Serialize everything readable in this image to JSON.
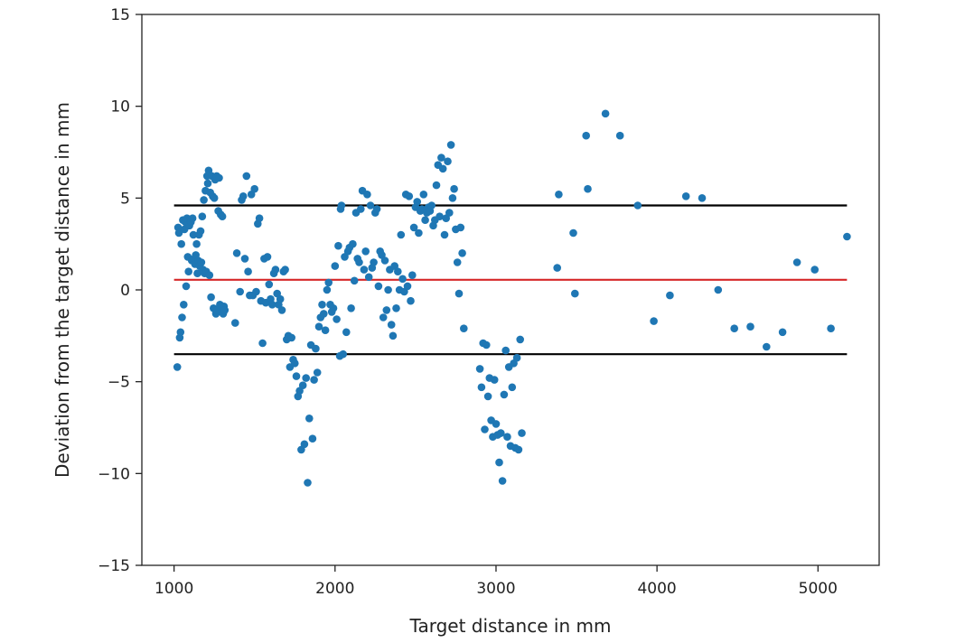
{
  "chart_data": {
    "type": "scatter",
    "title": "",
    "xlabel": "Target distance in mm",
    "ylabel": "Deviation from the target distance in mm",
    "xlim": [
      800,
      5380
    ],
    "ylim": [
      -15,
      15
    ],
    "xticks": [
      1000,
      2000,
      3000,
      4000,
      5000
    ],
    "yticks": [
      -15,
      -10,
      -5,
      0,
      5,
      10,
      15
    ],
    "xtick_labels": [
      "1000",
      "2000",
      "3000",
      "4000",
      "5000"
    ],
    "ytick_labels": [
      "−15",
      "−10",
      "−5",
      "0",
      "5",
      "10",
      "15"
    ],
    "grid": false,
    "point_color": "#1f77b4",
    "reference_lines": [
      {
        "role": "upper limit",
        "y": 4.6,
        "x_range": [
          1000,
          5180
        ],
        "color": "#000000"
      },
      {
        "role": "mean",
        "y": 0.55,
        "x_range": [
          1000,
          5180
        ],
        "color": "#d62728"
      },
      {
        "role": "lower limit",
        "y": -3.5,
        "x_range": [
          1000,
          5180
        ],
        "color": "#000000"
      }
    ],
    "points": [
      [
        1020,
        -4.2
      ],
      [
        1025,
        3.4
      ],
      [
        1030,
        3.1
      ],
      [
        1035,
        -2.6
      ],
      [
        1040,
        -2.3
      ],
      [
        1045,
        2.5
      ],
      [
        1050,
        -1.5
      ],
      [
        1055,
        3.8
      ],
      [
        1060,
        -0.8
      ],
      [
        1065,
        3.3
      ],
      [
        1070,
        3.7
      ],
      [
        1075,
        0.2
      ],
      [
        1080,
        3.9
      ],
      [
        1085,
        1.8
      ],
      [
        1090,
        1.0
      ],
      [
        1095,
        3.5
      ],
      [
        1100,
        3.8
      ],
      [
        1105,
        3.7
      ],
      [
        1110,
        1.6
      ],
      [
        1115,
        3.9
      ],
      [
        1120,
        3.0
      ],
      [
        1125,
        1.7
      ],
      [
        1130,
        1.4
      ],
      [
        1135,
        1.9
      ],
      [
        1140,
        2.5
      ],
      [
        1145,
        0.9
      ],
      [
        1150,
        1.6
      ],
      [
        1155,
        3.0
      ],
      [
        1160,
        1.3
      ],
      [
        1165,
        3.2
      ],
      [
        1170,
        1.5
      ],
      [
        1175,
        4.0
      ],
      [
        1180,
        1.1
      ],
      [
        1185,
        4.9
      ],
      [
        1190,
        0.9
      ],
      [
        1195,
        5.4
      ],
      [
        1200,
        1.0
      ],
      [
        1205,
        6.2
      ],
      [
        1210,
        5.8
      ],
      [
        1215,
        6.5
      ],
      [
        1220,
        0.8
      ],
      [
        1225,
        5.3
      ],
      [
        1230,
        -0.4
      ],
      [
        1235,
        6.2
      ],
      [
        1240,
        5.1
      ],
      [
        1245,
        -1.0
      ],
      [
        1250,
        5.0
      ],
      [
        1255,
        6.0
      ],
      [
        1260,
        -1.3
      ],
      [
        1265,
        6.2
      ],
      [
        1270,
        -1.1
      ],
      [
        1275,
        4.3
      ],
      [
        1280,
        6.1
      ],
      [
        1285,
        -0.8
      ],
      [
        1290,
        4.1
      ],
      [
        1295,
        -1.2
      ],
      [
        1300,
        4.0
      ],
      [
        1305,
        -1.3
      ],
      [
        1310,
        -0.9
      ],
      [
        1315,
        -1.1
      ],
      [
        1380,
        -1.8
      ],
      [
        1390,
        2.0
      ],
      [
        1410,
        -0.1
      ],
      [
        1420,
        4.9
      ],
      [
        1430,
        5.1
      ],
      [
        1440,
        1.7
      ],
      [
        1450,
        6.2
      ],
      [
        1460,
        1.0
      ],
      [
        1470,
        -0.3
      ],
      [
        1480,
        5.2
      ],
      [
        1490,
        -0.3
      ],
      [
        1500,
        5.5
      ],
      [
        1510,
        -0.1
      ],
      [
        1520,
        3.6
      ],
      [
        1530,
        3.9
      ],
      [
        1540,
        -0.6
      ],
      [
        1550,
        -2.9
      ],
      [
        1560,
        1.7
      ],
      [
        1570,
        -0.7
      ],
      [
        1580,
        1.8
      ],
      [
        1590,
        0.3
      ],
      [
        1600,
        -0.5
      ],
      [
        1610,
        -0.8
      ],
      [
        1620,
        0.9
      ],
      [
        1630,
        1.1
      ],
      [
        1640,
        -0.2
      ],
      [
        1650,
        -0.8
      ],
      [
        1660,
        -0.5
      ],
      [
        1670,
        -1.1
      ],
      [
        1680,
        1.0
      ],
      [
        1690,
        1.1
      ],
      [
        1700,
        -2.7
      ],
      [
        1710,
        -2.5
      ],
      [
        1720,
        -4.2
      ],
      [
        1730,
        -2.6
      ],
      [
        1740,
        -3.8
      ],
      [
        1750,
        -4.0
      ],
      [
        1760,
        -4.7
      ],
      [
        1770,
        -5.8
      ],
      [
        1780,
        -5.5
      ],
      [
        1790,
        -8.7
      ],
      [
        1800,
        -5.2
      ],
      [
        1810,
        -8.4
      ],
      [
        1820,
        -4.8
      ],
      [
        1830,
        -10.5
      ],
      [
        1840,
        -7.0
      ],
      [
        1850,
        -3.0
      ],
      [
        1860,
        -8.1
      ],
      [
        1870,
        -4.9
      ],
      [
        1880,
        -3.2
      ],
      [
        1890,
        -4.5
      ],
      [
        1900,
        -2.0
      ],
      [
        1910,
        -1.5
      ],
      [
        1920,
        -0.8
      ],
      [
        1930,
        -1.3
      ],
      [
        1940,
        -2.2
      ],
      [
        1950,
        0.0
      ],
      [
        1960,
        0.4
      ],
      [
        1970,
        -0.8
      ],
      [
        1980,
        -1.2
      ],
      [
        1990,
        -1.0
      ],
      [
        2000,
        1.3
      ],
      [
        2010,
        -1.6
      ],
      [
        2020,
        2.4
      ],
      [
        2030,
        -3.6
      ],
      [
        2035,
        4.4
      ],
      [
        2040,
        4.6
      ],
      [
        2050,
        -3.5
      ],
      [
        2060,
        1.8
      ],
      [
        2070,
        -2.3
      ],
      [
        2080,
        2.1
      ],
      [
        2090,
        2.3
      ],
      [
        2100,
        -1.0
      ],
      [
        2110,
        2.5
      ],
      [
        2120,
        0.5
      ],
      [
        2130,
        4.2
      ],
      [
        2140,
        1.7
      ],
      [
        2150,
        1.5
      ],
      [
        2160,
        4.4
      ],
      [
        2170,
        5.4
      ],
      [
        2180,
        1.1
      ],
      [
        2190,
        2.1
      ],
      [
        2200,
        5.2
      ],
      [
        2210,
        0.7
      ],
      [
        2220,
        4.6
      ],
      [
        2230,
        1.2
      ],
      [
        2240,
        1.5
      ],
      [
        2250,
        4.2
      ],
      [
        2260,
        4.4
      ],
      [
        2270,
        0.2
      ],
      [
        2280,
        2.1
      ],
      [
        2290,
        1.9
      ],
      [
        2300,
        -1.5
      ],
      [
        2310,
        1.6
      ],
      [
        2320,
        -1.1
      ],
      [
        2330,
        0.0
      ],
      [
        2340,
        1.1
      ],
      [
        2350,
        -1.9
      ],
      [
        2360,
        -2.5
      ],
      [
        2370,
        1.3
      ],
      [
        2380,
        -1.0
      ],
      [
        2390,
        1.0
      ],
      [
        2400,
        0.0
      ],
      [
        2410,
        3.0
      ],
      [
        2420,
        0.6
      ],
      [
        2430,
        -0.1
      ],
      [
        2440,
        5.2
      ],
      [
        2450,
        0.2
      ],
      [
        2460,
        5.1
      ],
      [
        2470,
        -0.6
      ],
      [
        2480,
        0.8
      ],
      [
        2490,
        3.4
      ],
      [
        2500,
        4.5
      ],
      [
        2510,
        4.8
      ],
      [
        2520,
        3.1
      ],
      [
        2530,
        4.3
      ],
      [
        2540,
        4.4
      ],
      [
        2550,
        5.2
      ],
      [
        2560,
        3.8
      ],
      [
        2570,
        4.2
      ],
      [
        2580,
        4.5
      ],
      [
        2590,
        4.3
      ],
      [
        2600,
        4.6
      ],
      [
        2610,
        3.5
      ],
      [
        2620,
        3.8
      ],
      [
        2630,
        5.7
      ],
      [
        2640,
        6.8
      ],
      [
        2650,
        4.0
      ],
      [
        2660,
        7.2
      ],
      [
        2670,
        6.6
      ],
      [
        2680,
        3.0
      ],
      [
        2690,
        3.9
      ],
      [
        2700,
        7.0
      ],
      [
        2710,
        4.2
      ],
      [
        2720,
        7.9
      ],
      [
        2730,
        5.0
      ],
      [
        2740,
        5.5
      ],
      [
        2750,
        3.3
      ],
      [
        2760,
        1.5
      ],
      [
        2770,
        -0.2
      ],
      [
        2780,
        3.4
      ],
      [
        2790,
        2.0
      ],
      [
        2800,
        -2.1
      ],
      [
        2900,
        -4.3
      ],
      [
        2910,
        -5.3
      ],
      [
        2920,
        -2.9
      ],
      [
        2930,
        -7.6
      ],
      [
        2940,
        -3.0
      ],
      [
        2950,
        -5.8
      ],
      [
        2960,
        -4.8
      ],
      [
        2970,
        -7.1
      ],
      [
        2980,
        -8.0
      ],
      [
        2990,
        -4.9
      ],
      [
        3000,
        -7.3
      ],
      [
        3010,
        -7.9
      ],
      [
        3020,
        -9.4
      ],
      [
        3030,
        -7.8
      ],
      [
        3040,
        -10.4
      ],
      [
        3050,
        -5.7
      ],
      [
        3060,
        -3.3
      ],
      [
        3070,
        -8.0
      ],
      [
        3080,
        -4.2
      ],
      [
        3090,
        -8.5
      ],
      [
        3100,
        -5.3
      ],
      [
        3110,
        -4.0
      ],
      [
        3120,
        -8.6
      ],
      [
        3130,
        -3.7
      ],
      [
        3140,
        -8.7
      ],
      [
        3150,
        -2.7
      ],
      [
        3160,
        -7.8
      ],
      [
        3380,
        1.2
      ],
      [
        3390,
        5.2
      ],
      [
        3480,
        3.1
      ],
      [
        3490,
        -0.2
      ],
      [
        3560,
        8.4
      ],
      [
        3570,
        5.5
      ],
      [
        3680,
        9.6
      ],
      [
        3770,
        8.4
      ],
      [
        3880,
        4.6
      ],
      [
        3980,
        -1.7
      ],
      [
        4080,
        -0.3
      ],
      [
        4180,
        5.1
      ],
      [
        4280,
        5.0
      ],
      [
        4380,
        0.0
      ],
      [
        4480,
        -2.1
      ],
      [
        4580,
        -2.0
      ],
      [
        4680,
        -3.1
      ],
      [
        4780,
        -2.3
      ],
      [
        4870,
        1.5
      ],
      [
        4980,
        1.1
      ],
      [
        5080,
        -2.1
      ],
      [
        5180,
        2.9
      ]
    ]
  }
}
